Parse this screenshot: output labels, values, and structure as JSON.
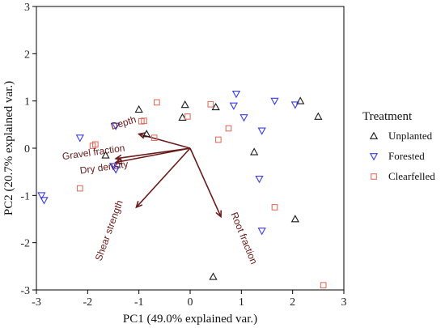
{
  "chart_data": {
    "type": "scatter",
    "title": "",
    "xlabel": "PC1 (49.0% explained var.)",
    "ylabel": "PC2 (20.7% explained var.)",
    "xlim": [
      -3,
      3
    ],
    "ylim": [
      -3,
      3
    ],
    "xticks": [
      -3,
      -2,
      -1,
      0,
      1,
      2,
      3
    ],
    "yticks": [
      -3,
      -2,
      -1,
      0,
      1,
      2,
      3
    ],
    "grid": false,
    "legend": {
      "title": "Treatment",
      "placement": "right"
    },
    "series": [
      {
        "name": "Unplanted",
        "marker": "triangle-up",
        "color": "#1a1a1a",
        "points": [
          [
            -1.65,
            -0.15
          ],
          [
            -1.0,
            0.82
          ],
          [
            -0.85,
            0.3
          ],
          [
            -0.1,
            0.92
          ],
          [
            -0.15,
            0.65
          ],
          [
            0.5,
            0.87
          ],
          [
            1.25,
            -0.08
          ],
          [
            2.15,
            1.0
          ],
          [
            2.5,
            0.67
          ],
          [
            2.05,
            -1.5
          ],
          [
            0.45,
            -2.72
          ]
        ]
      },
      {
        "name": "Forested",
        "marker": "triangle-down",
        "color": "#3a3af0",
        "points": [
          [
            -2.9,
            -1.0
          ],
          [
            -2.85,
            -1.1
          ],
          [
            -2.15,
            0.22
          ],
          [
            -1.45,
            0.47
          ],
          [
            -1.5,
            -0.38
          ],
          [
            -1.45,
            -0.45
          ],
          [
            0.85,
            0.9
          ],
          [
            0.9,
            1.15
          ],
          [
            1.05,
            0.65
          ],
          [
            1.4,
            0.37
          ],
          [
            1.65,
            1.0
          ],
          [
            2.05,
            0.92
          ],
          [
            1.35,
            -0.65
          ],
          [
            1.4,
            -1.75
          ]
        ]
      },
      {
        "name": "Clearfelled",
        "marker": "square",
        "color": "#e07060",
        "points": [
          [
            -2.15,
            -0.85
          ],
          [
            -1.9,
            0.05
          ],
          [
            -1.85,
            0.08
          ],
          [
            -0.95,
            0.57
          ],
          [
            -0.9,
            0.58
          ],
          [
            -0.65,
            0.97
          ],
          [
            -0.7,
            0.22
          ],
          [
            -0.05,
            0.67
          ],
          [
            0.4,
            0.93
          ],
          [
            0.75,
            0.42
          ],
          [
            0.55,
            0.18
          ],
          [
            1.65,
            -1.25
          ],
          [
            2.6,
            -2.9
          ]
        ]
      }
    ],
    "loadings": [
      {
        "label": "Depth",
        "x": -1.0,
        "y": 0.3
      },
      {
        "label": "Gravel fraction",
        "x": -1.45,
        "y": -0.22
      },
      {
        "label": "Dry density",
        "x": -1.45,
        "y": -0.3
      },
      {
        "label": "Shear strength",
        "x": -1.05,
        "y": -1.25
      },
      {
        "label": "Root fraction",
        "x": 0.6,
        "y": -1.45
      }
    ],
    "arrow_color": "#6b1a1a"
  }
}
